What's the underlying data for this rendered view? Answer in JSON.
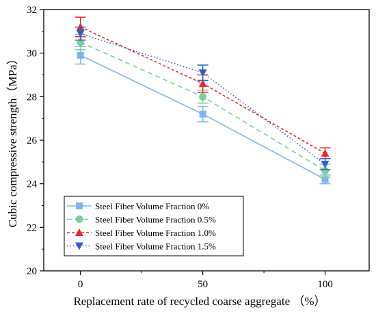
{
  "chart_data": {
    "type": "line",
    "xlabel": "Replacement rate of recycled coarse aggregate （%）",
    "ylabel": "Cubic compressive strength（MPa）",
    "x": [
      0,
      50,
      100
    ],
    "xticks": [
      "0",
      "50",
      "100"
    ],
    "xlim": [
      -15,
      118
    ],
    "ylim": [
      20,
      32
    ],
    "yticks": [
      20,
      22,
      24,
      26,
      28,
      30,
      32
    ],
    "grid": false,
    "legend_position": "bottom-left",
    "series": [
      {
        "name": "Steel Fiber Volume Fraction 0%",
        "values": [
          29.9,
          27.2,
          24.2
        ],
        "errors": [
          0.4,
          0.35,
          0.2
        ],
        "color": "#7fb5e8",
        "dash": "solid",
        "marker": "square"
      },
      {
        "name": "Steel Fiber Volume Fraction 0.5%",
        "values": [
          30.5,
          28.0,
          24.6
        ],
        "errors": [
          0.35,
          0.3,
          0.3
        ],
        "color": "#7ccf9c",
        "dash": "dashed",
        "marker": "circle"
      },
      {
        "name": "Steel Fiber Volume Fraction 1.0%",
        "values": [
          31.2,
          28.6,
          25.4
        ],
        "errors": [
          0.45,
          0.4,
          0.25
        ],
        "color": "#e8292b",
        "dash": "short-dashed",
        "marker": "triangle-up"
      },
      {
        "name": "Steel Fiber Volume Fraction 1.5%",
        "values": [
          30.9,
          29.1,
          24.9
        ],
        "errors": [
          0.3,
          0.35,
          0.25
        ],
        "color": "#2f5fc8",
        "dash": "dotted",
        "marker": "triangle-down"
      }
    ]
  }
}
